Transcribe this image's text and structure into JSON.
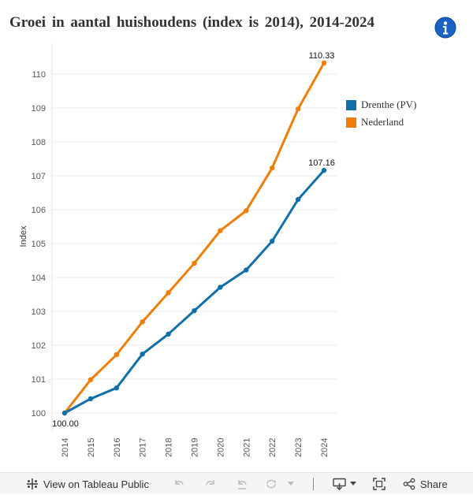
{
  "title": "Groei in aantal huishoudens (index is 2014), 2014-2024",
  "colors": {
    "drenthe": "#1170aa",
    "nederland": "#ef7e09",
    "gridline": "#ececec",
    "axis_text": "#555555",
    "info": "#1a63c4"
  },
  "chart_data": {
    "type": "line",
    "title": "Groei in aantal huishoudens (index is 2014), 2014-2024",
    "xlabel": "",
    "ylabel": "Index",
    "x": [
      "2014",
      "2015",
      "2016",
      "2017",
      "2018",
      "2019",
      "2020",
      "2021",
      "2022",
      "2023",
      "2024"
    ],
    "ylim": [
      99.7,
      110.8
    ],
    "yticks": [
      100,
      101,
      102,
      103,
      104,
      105,
      106,
      107,
      108,
      109,
      110
    ],
    "series": [
      {
        "name": "Drenthe (PV)",
        "color": "#1170aa",
        "values": [
          100.0,
          100.42,
          100.74,
          101.74,
          102.33,
          103.02,
          103.71,
          104.22,
          105.07,
          106.3,
          107.16
        ],
        "end_labels": {
          "first": "100.00",
          "last": "107.16"
        }
      },
      {
        "name": "Nederland",
        "color": "#ef7e09",
        "values": [
          100.0,
          100.98,
          101.72,
          102.69,
          103.55,
          104.42,
          105.38,
          105.97,
          107.23,
          108.97,
          110.33
        ],
        "end_labels": {
          "last": "110.33"
        }
      }
    ],
    "legend_position": "right",
    "grid": true
  },
  "legend": {
    "items": [
      {
        "label": "Drenthe (PV)"
      },
      {
        "label": "Nederland"
      }
    ]
  },
  "toolbar": {
    "view_label": "View on Tableau Public",
    "share_label": "Share"
  }
}
